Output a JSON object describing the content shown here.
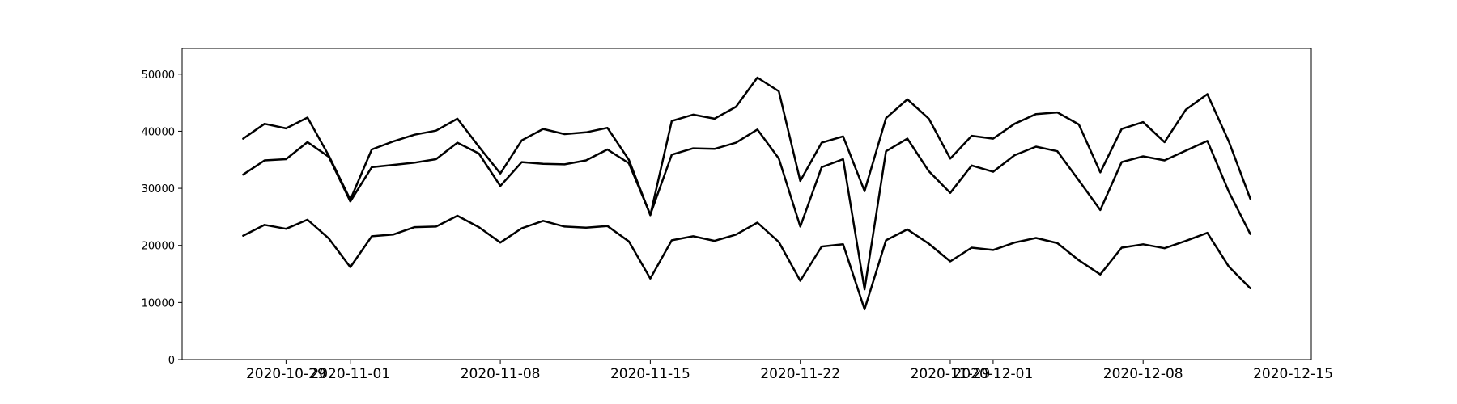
{
  "chart_data": {
    "type": "line",
    "title": "",
    "xlabel": "",
    "ylabel": "",
    "ylim": [
      0,
      54500
    ],
    "xlim": [
      "2020-10-24",
      "2020-12-16"
    ],
    "grid": false,
    "legend": "none",
    "line_color": "#000000",
    "x_tick_labels": [
      "2020-10-29",
      "2020-11-01",
      "2020-11-08",
      "2020-11-15",
      "2020-11-22",
      "2020-11-29",
      "2020-12-01",
      "2020-12-08",
      "2020-12-15"
    ],
    "y_tick_labels": [
      "0",
      "10000",
      "20000",
      "30000",
      "40000",
      "50000"
    ],
    "x": [
      "2020-10-27",
      "2020-10-28",
      "2020-10-29",
      "2020-10-30",
      "2020-10-31",
      "2020-11-01",
      "2020-11-02",
      "2020-11-03",
      "2020-11-04",
      "2020-11-05",
      "2020-11-06",
      "2020-11-07",
      "2020-11-08",
      "2020-11-09",
      "2020-11-10",
      "2020-11-11",
      "2020-11-12",
      "2020-11-13",
      "2020-11-14",
      "2020-11-15",
      "2020-11-16",
      "2020-11-17",
      "2020-11-18",
      "2020-11-19",
      "2020-11-20",
      "2020-11-21",
      "2020-11-22",
      "2020-11-23",
      "2020-11-24",
      "2020-11-25",
      "2020-11-26",
      "2020-11-27",
      "2020-11-28",
      "2020-11-29",
      "2020-11-30",
      "2020-12-01",
      "2020-12-02",
      "2020-12-03",
      "2020-12-04",
      "2020-12-05",
      "2020-12-06",
      "2020-12-07",
      "2020-12-08",
      "2020-12-09",
      "2020-12-10",
      "2020-12-11",
      "2020-12-12",
      "2020-12-13"
    ],
    "series": [
      {
        "values": [
          38700,
          41300,
          40500,
          42400,
          35700,
          28000,
          36800,
          38200,
          39400,
          40100,
          42200,
          37300,
          32600,
          38400,
          40400,
          39500,
          39800,
          40600,
          35000,
          25300,
          41800,
          42900,
          42200,
          44300,
          49400,
          47000,
          31300,
          38000,
          39100,
          29500,
          42300,
          45600,
          42200,
          35200,
          39200,
          38700,
          41300,
          43000,
          43300,
          41200,
          32800,
          40400,
          41600,
          38100,
          43800,
          46500,
          38200,
          28200
        ]
      },
      {
        "values": [
          32400,
          34900,
          35100,
          38100,
          35500,
          27700,
          33700,
          34100,
          34500,
          35100,
          38000,
          36100,
          30400,
          34600,
          34300,
          34200,
          34900,
          36800,
          34400,
          25400,
          35900,
          37000,
          36900,
          38000,
          40300,
          35200,
          23300,
          33700,
          35100,
          12300,
          36500,
          38700,
          33000,
          29200,
          34000,
          32900,
          35800,
          37300,
          36500,
          31400,
          26200,
          34600,
          35600,
          34900,
          36600,
          38300,
          29400,
          22000
        ]
      },
      {
        "values": [
          21700,
          23600,
          22900,
          24500,
          21200,
          16200,
          21600,
          21900,
          23200,
          23300,
          25200,
          23200,
          20500,
          23000,
          24300,
          23300,
          23100,
          23400,
          20700,
          14200,
          20900,
          21600,
          20800,
          21900,
          24000,
          20600,
          13800,
          19800,
          20200,
          8800,
          20900,
          22800,
          20300,
          17200,
          19600,
          19200,
          20500,
          21300,
          20400,
          17400,
          14900,
          19600,
          20200,
          19500,
          20800,
          22200,
          16300,
          12500
        ]
      }
    ]
  }
}
